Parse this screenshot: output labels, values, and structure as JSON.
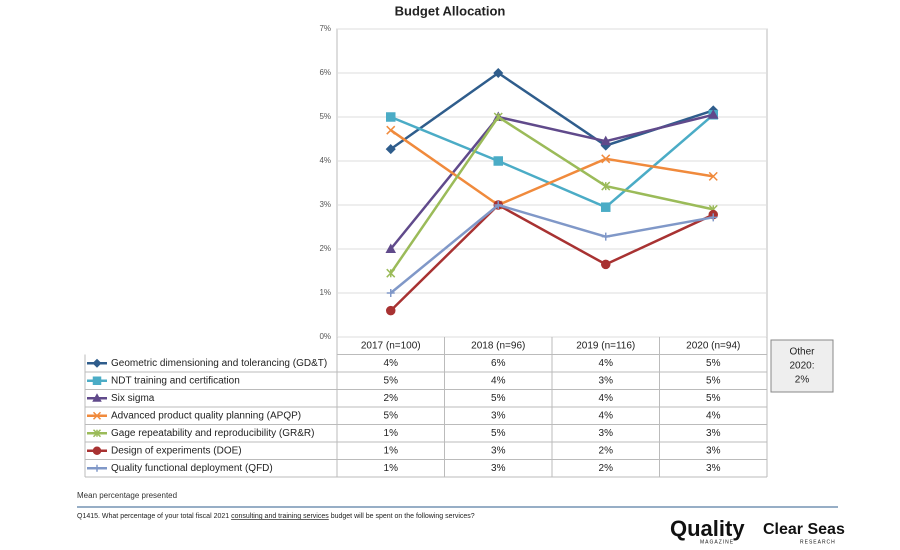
{
  "chart_data": {
    "type": "line",
    "title": "Budget Allocation",
    "categories": [
      "2017 (n=100)",
      "2018 (n=96)",
      "2019 (n=116)",
      "2020 (n=94)"
    ],
    "ylim": [
      0,
      7
    ],
    "yticks": [
      {
        "value": 0,
        "label": "0%"
      },
      {
        "value": 1,
        "label": "1%"
      },
      {
        "value": 2,
        "label": "2%"
      },
      {
        "value": 3,
        "label": "3%"
      },
      {
        "value": 4,
        "label": "4%"
      },
      {
        "value": 5,
        "label": "5%"
      },
      {
        "value": 6,
        "label": "6%"
      },
      {
        "value": 7,
        "label": "7%"
      }
    ],
    "grid": true,
    "series": [
      {
        "name": "Geometric dimensioning and tolerancing (GD&T)",
        "color": "#2f5d8c",
        "marker": "diamond",
        "values": [
          4.27,
          6.0,
          4.35,
          5.15
        ],
        "value_labels": [
          "4%",
          "6%",
          "4%",
          "5%"
        ]
      },
      {
        "name": "NDT training and certification",
        "color": "#4bacc6",
        "marker": "square",
        "values": [
          5.0,
          4.0,
          2.95,
          5.05
        ],
        "value_labels": [
          "5%",
          "4%",
          "3%",
          "5%"
        ]
      },
      {
        "name": "Six sigma",
        "color": "#604a8b",
        "marker": "triangle",
        "values": [
          2.0,
          5.0,
          4.45,
          5.05
        ],
        "value_labels": [
          "2%",
          "5%",
          "4%",
          "5%"
        ]
      },
      {
        "name": "Advanced product quality planning (APQP)",
        "color": "#f08a3c",
        "marker": "x",
        "values": [
          4.7,
          3.0,
          4.05,
          3.65
        ],
        "value_labels": [
          "5%",
          "3%",
          "4%",
          "4%"
        ]
      },
      {
        "name": "Gage repeatability and reproducibility (GR&R)",
        "color": "#9bbb59",
        "marker": "star",
        "values": [
          1.45,
          5.0,
          3.43,
          2.9
        ],
        "value_labels": [
          "1%",
          "5%",
          "3%",
          "3%"
        ]
      },
      {
        "name": "Design of experiments (DOE)",
        "color": "#a83232",
        "marker": "circle",
        "values": [
          0.6,
          3.0,
          1.65,
          2.78
        ],
        "value_labels": [
          "1%",
          "3%",
          "2%",
          "3%"
        ]
      },
      {
        "name": "Quality functional deployment (QFD)",
        "color": "#8098c8",
        "marker": "plus",
        "values": [
          1.0,
          3.0,
          2.28,
          2.72
        ],
        "value_labels": [
          "1%",
          "3%",
          "2%",
          "3%"
        ]
      }
    ]
  },
  "other_note": [
    "Other",
    "2020:",
    "2%"
  ],
  "footnote": "Mean percentage presented",
  "question": {
    "before": "Q1415. What percentage of your total fiscal 2021 ",
    "underlined": "consulting and training services",
    "after": " budget will be spent on the following services?"
  },
  "logos": {
    "quality": "Quality",
    "quality_sub": "MAGAZINE",
    "clear_seas": "Clear Seas",
    "clear_seas_sub": "RESEARCH"
  }
}
